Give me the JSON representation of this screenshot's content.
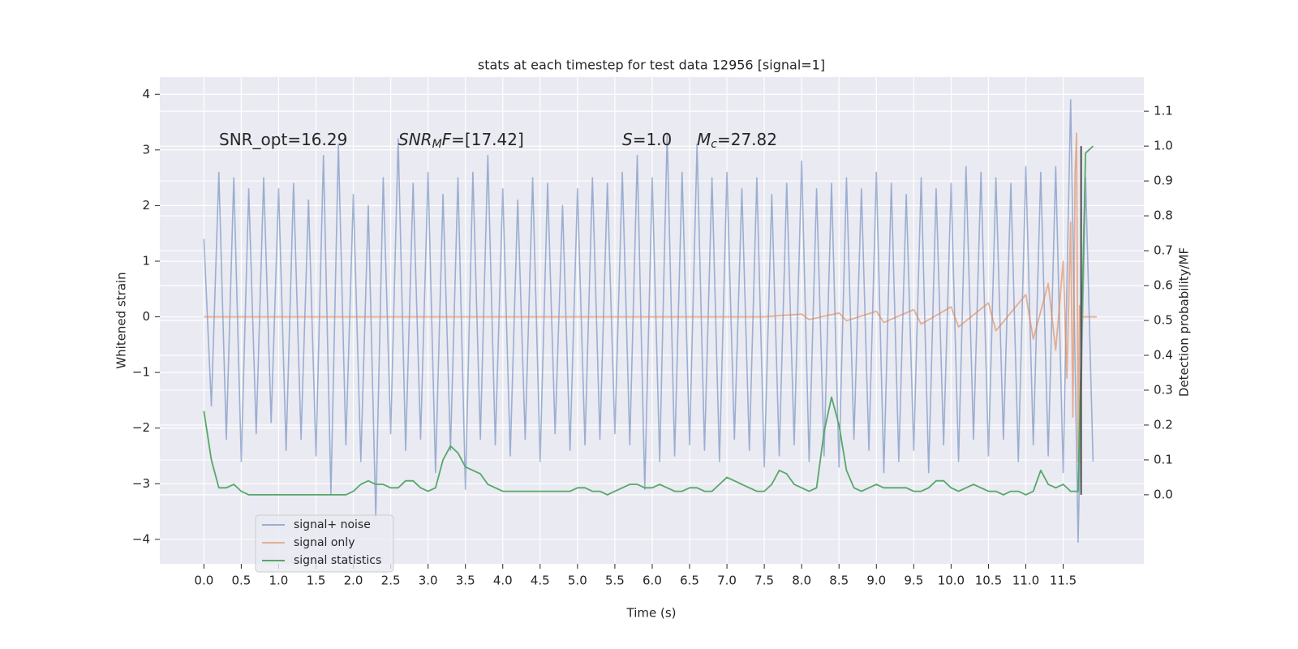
{
  "chart_data": {
    "type": "line",
    "title": "stats at each timestep for test data 12956 [signal=1]",
    "xlabel": "Time (s)",
    "ylabel": "Whitened strain",
    "y2label": "Detection probability/MF",
    "grid": true,
    "legend": "lower left",
    "xlim": [
      -0.59,
      12.58
    ],
    "ylim": [
      -4.44,
      4.31
    ],
    "y2lim": [
      -0.198,
      1.198
    ],
    "xticks": [
      {
        "value": 0,
        "label": "0.0"
      },
      0.5,
      {
        "value": 1,
        "label": "1.0"
      },
      1.5,
      {
        "value": 2,
        "label": "2.0"
      },
      2.5,
      {
        "value": 3,
        "label": "3.0"
      },
      3.5,
      {
        "value": 4,
        "label": "4.0"
      },
      4.5,
      {
        "value": 5,
        "label": "5.0"
      },
      5.5,
      {
        "value": 6,
        "label": "6.0"
      },
      6.5,
      {
        "value": 7,
        "label": "7.0"
      },
      7.5,
      {
        "value": 8,
        "label": "8.0"
      },
      8.5,
      {
        "value": 9,
        "label": "9.0"
      },
      9.5,
      {
        "value": 10,
        "label": "10.0"
      },
      10.5,
      {
        "value": 11,
        "label": "11.0"
      },
      11.5
    ],
    "yticks": [
      {
        "value": -4,
        "label": "−4"
      },
      {
        "value": -3,
        "label": "−3"
      },
      {
        "value": -2,
        "label": "−2"
      },
      {
        "value": -1,
        "label": "−1"
      },
      0,
      1,
      2,
      3,
      4
    ],
    "y2ticks": [
      {
        "value": 0,
        "label": "0.0"
      },
      0.1,
      0.2,
      0.3,
      0.4,
      0.5,
      0.6,
      0.7,
      0.8,
      0.9,
      {
        "value": 1,
        "label": "1.0"
      },
      1.1
    ],
    "annotations": [
      {
        "runs": [
          {
            "text": "SNR_opt=16.29"
          }
        ]
      },
      {
        "runs": [
          {
            "text": "SNR",
            "style": "italic"
          },
          {
            "text": "M",
            "style": "italic-sub"
          },
          {
            "text": "F",
            "style": "italic"
          },
          {
            "text": "=[17.42]"
          }
        ]
      },
      {
        "runs": [
          {
            "text": "S",
            "style": "italic"
          },
          {
            "text": "=1.0"
          }
        ]
      },
      {
        "runs": [
          {
            "text": "M",
            "style": "italic"
          },
          {
            "text": "c",
            "style": "italic-sub"
          },
          {
            "text": "=27.82"
          }
        ]
      }
    ],
    "vline": {
      "x": 11.74,
      "ymin": 0,
      "ymax": 1.0,
      "axis": "y2",
      "color": "#4d4d4d"
    },
    "series": [
      {
        "name": "signal+ noise",
        "color": "#4c72b0",
        "opacity": 0.5,
        "x": [
          0,
          0.1,
          0.2,
          0.3,
          0.4,
          0.5,
          0.6,
          0.7,
          0.8,
          0.9,
          1,
          1.1,
          1.2,
          1.3,
          1.4,
          1.5,
          1.6,
          1.7,
          1.8,
          1.9,
          2,
          2.1,
          2.2,
          2.3,
          2.4,
          2.5,
          2.6,
          2.7,
          2.8,
          2.9,
          3,
          3.1,
          3.2,
          3.3,
          3.4,
          3.5,
          3.6,
          3.7,
          3.8,
          3.9,
          4,
          4.1,
          4.2,
          4.3,
          4.4,
          4.5,
          4.6,
          4.7,
          4.8,
          4.9,
          5,
          5.1,
          5.2,
          5.3,
          5.4,
          5.5,
          5.6,
          5.7,
          5.8,
          5.9,
          6,
          6.1,
          6.2,
          6.3,
          6.4,
          6.5,
          6.6,
          6.7,
          6.8,
          6.9,
          7,
          7.1,
          7.2,
          7.3,
          7.4,
          7.5,
          7.6,
          7.7,
          7.8,
          7.9,
          8,
          8.1,
          8.2,
          8.3,
          8.4,
          8.5,
          8.6,
          8.7,
          8.8,
          8.9,
          9,
          9.1,
          9.2,
          9.3,
          9.4,
          9.5,
          9.6,
          9.7,
          9.8,
          9.9,
          10,
          10.1,
          10.2,
          10.3,
          10.4,
          10.5,
          10.6,
          10.7,
          10.8,
          10.9,
          11,
          11.1,
          11.2,
          11.3,
          11.4,
          11.5,
          11.6,
          11.7,
          11.8,
          11.9
        ],
        "values": [
          1.4,
          -1.6,
          2.6,
          -2.2,
          2.5,
          -2.6,
          2.3,
          -2.1,
          2.5,
          -1.9,
          2.3,
          -2.4,
          2.4,
          -2.2,
          2.1,
          -2.5,
          2.9,
          -3.2,
          3.1,
          -2.3,
          2.2,
          -2.6,
          2.0,
          -3.6,
          2.5,
          -2.1,
          3.2,
          -2.4,
          2.4,
          -2.2,
          2.6,
          -2.8,
          2.2,
          -2.4,
          2.5,
          -3.1,
          2.6,
          -2.2,
          2.9,
          -2.3,
          2.3,
          -2.5,
          2.1,
          -2.2,
          2.5,
          -2.6,
          2.4,
          -2.1,
          2.0,
          -2.4,
          2.3,
          -2.3,
          2.5,
          -2.2,
          2.4,
          -2.1,
          2.6,
          -2.3,
          2.9,
          -3.1,
          2.5,
          -2.6,
          3.3,
          -2.5,
          2.6,
          -2.3,
          3.1,
          -2.4,
          2.5,
          -2.6,
          2.6,
          -2.2,
          2.3,
          -2.4,
          2.5,
          -2.7,
          2.2,
          -2.5,
          2.4,
          -2.3,
          2.8,
          -2.6,
          2.3,
          -2.5,
          2.4,
          -2.7,
          2.5,
          -2.2,
          2.3,
          -2.4,
          2.6,
          -2.8,
          2.4,
          -2.6,
          2.2,
          -2.4,
          2.5,
          -2.8,
          2.3,
          -2.3,
          2.4,
          -2.6,
          2.7,
          -2.2,
          2.6,
          -2.5,
          2.5,
          -2.2,
          2.4,
          -2.6,
          2.7,
          -2.3,
          2.6,
          -2.5,
          2.7,
          -2.8,
          3.9,
          -4.05,
          2.5,
          -2.6
        ]
      },
      {
        "name": "signal only",
        "color": "#dd8452",
        "opacity": 0.6,
        "x": [
          0,
          7.5,
          8.0,
          8.1,
          8.5,
          8.6,
          9.0,
          9.1,
          9.5,
          9.6,
          10.0,
          10.1,
          10.5,
          10.6,
          11.0,
          11.1,
          11.3,
          11.4,
          11.5,
          11.55,
          11.6,
          11.63,
          11.66,
          11.68,
          11.7,
          11.72,
          11.75,
          11.95
        ],
        "values": [
          0,
          0,
          0.05,
          -0.05,
          0.07,
          -0.07,
          0.1,
          -0.1,
          0.13,
          -0.13,
          0.18,
          -0.18,
          0.25,
          -0.25,
          0.4,
          -0.4,
          0.6,
          -0.6,
          1.0,
          -1.1,
          1.7,
          -1.8,
          2.6,
          3.3,
          -2.6,
          0.2,
          0,
          0
        ]
      },
      {
        "name": "signal statistics",
        "color": "#55a868",
        "opacity": 1,
        "axis": "y2",
        "x": [
          0,
          0.1,
          0.2,
          0.3,
          0.4,
          0.5,
          0.6,
          0.7,
          0.8,
          0.9,
          1,
          1.1,
          1.2,
          1.3,
          1.4,
          1.5,
          1.6,
          1.7,
          1.8,
          1.9,
          2,
          2.1,
          2.2,
          2.3,
          2.4,
          2.5,
          2.6,
          2.7,
          2.8,
          2.9,
          3,
          3.1,
          3.2,
          3.3,
          3.4,
          3.5,
          3.6,
          3.7,
          3.8,
          3.9,
          4,
          4.1,
          4.2,
          4.3,
          4.4,
          4.5,
          4.6,
          4.7,
          4.8,
          4.9,
          5,
          5.1,
          5.2,
          5.3,
          5.4,
          5.5,
          5.6,
          5.7,
          5.8,
          5.9,
          6,
          6.1,
          6.2,
          6.3,
          6.4,
          6.5,
          6.6,
          6.7,
          6.8,
          6.9,
          7,
          7.1,
          7.2,
          7.3,
          7.4,
          7.5,
          7.6,
          7.7,
          7.8,
          7.9,
          8,
          8.1,
          8.2,
          8.3,
          8.4,
          8.5,
          8.6,
          8.7,
          8.8,
          8.9,
          9,
          9.1,
          9.2,
          9.3,
          9.4,
          9.5,
          9.6,
          9.7,
          9.8,
          9.9,
          10,
          10.1,
          10.2,
          10.3,
          10.4,
          10.5,
          10.6,
          10.7,
          10.8,
          10.9,
          11,
          11.1,
          11.2,
          11.3,
          11.4,
          11.5,
          11.6,
          11.7,
          11.8,
          11.9
        ],
        "values": [
          0.24,
          0.1,
          0.02,
          0.02,
          0.03,
          0.01,
          0,
          0,
          0,
          0,
          0,
          0,
          0,
          0,
          0,
          0,
          0,
          0,
          0,
          0,
          0.01,
          0.03,
          0.04,
          0.03,
          0.03,
          0.02,
          0.02,
          0.04,
          0.04,
          0.02,
          0.01,
          0.02,
          0.1,
          0.14,
          0.12,
          0.08,
          0.07,
          0.06,
          0.03,
          0.02,
          0.01,
          0.01,
          0.01,
          0.01,
          0.01,
          0.01,
          0.01,
          0.01,
          0.01,
          0.01,
          0.02,
          0.02,
          0.01,
          0.01,
          0,
          0.01,
          0.02,
          0.03,
          0.03,
          0.02,
          0.02,
          0.03,
          0.02,
          0.01,
          0.01,
          0.02,
          0.02,
          0.01,
          0.01,
          0.03,
          0.05,
          0.04,
          0.03,
          0.02,
          0.01,
          0.01,
          0.03,
          0.07,
          0.06,
          0.03,
          0.02,
          0.01,
          0.02,
          0.18,
          0.28,
          0.2,
          0.07,
          0.02,
          0.01,
          0.02,
          0.03,
          0.02,
          0.02,
          0.02,
          0.02,
          0.01,
          0.01,
          0.02,
          0.04,
          0.04,
          0.02,
          0.01,
          0.02,
          0.03,
          0.02,
          0.01,
          0.01,
          0,
          0.01,
          0.01,
          0,
          0.01,
          0.07,
          0.03,
          0.02,
          0.03,
          0.01,
          0.01,
          0.98,
          1.0
        ]
      }
    ]
  }
}
